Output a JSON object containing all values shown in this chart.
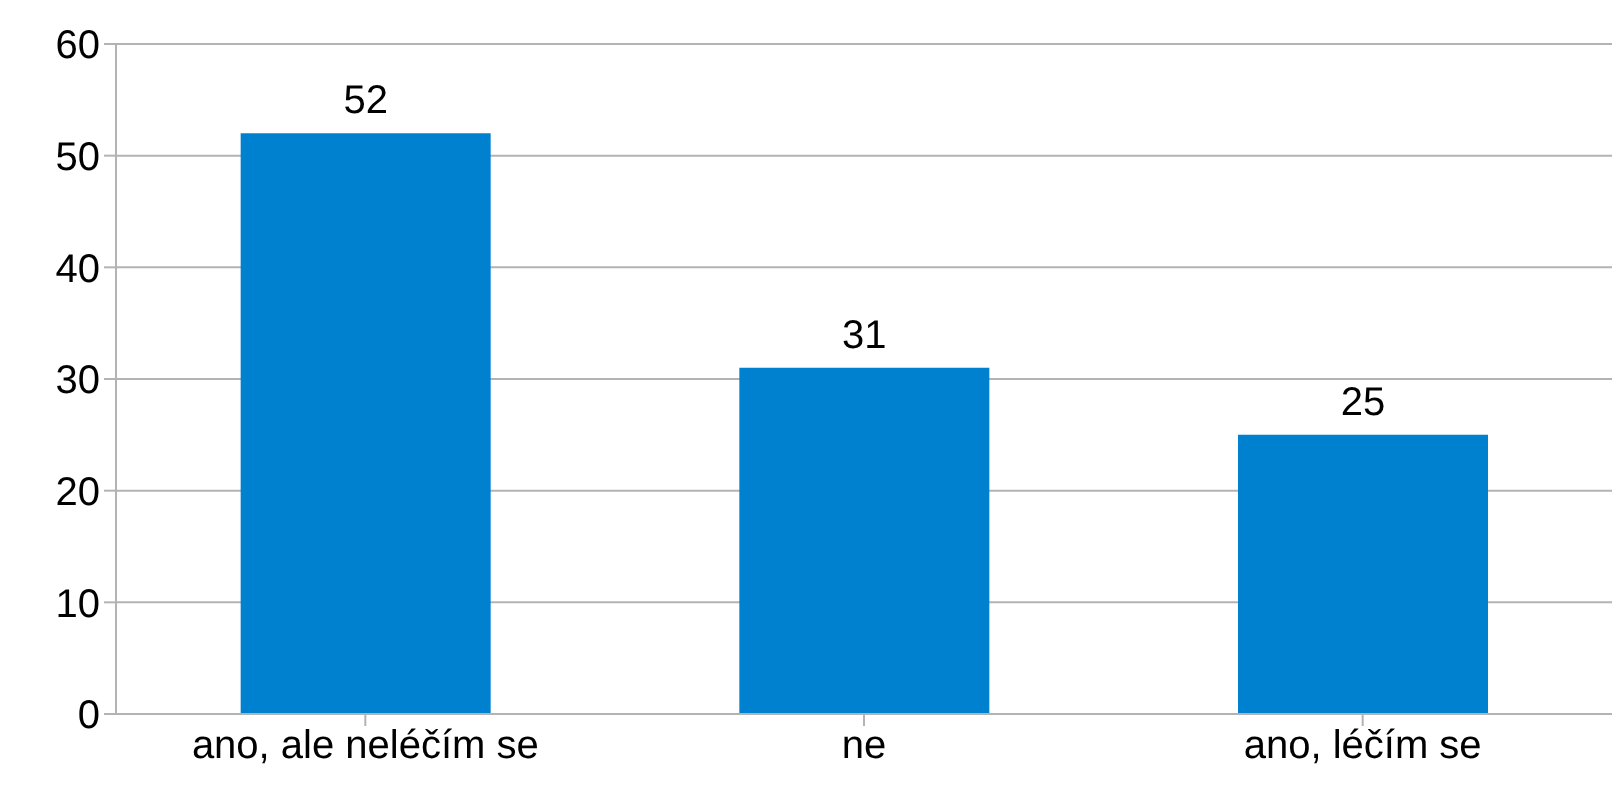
{
  "chart_data": {
    "type": "bar",
    "categories": [
      "ano, ale neléčím se",
      "ne",
      "ano, léčím se"
    ],
    "values": [
      52,
      31,
      25
    ],
    "color": "#0081d0",
    "ylim": [
      0,
      60
    ],
    "yticks": [
      0,
      10,
      20,
      30,
      40,
      50,
      60
    ],
    "grid": "y",
    "data_labels": true,
    "legend": false
  }
}
